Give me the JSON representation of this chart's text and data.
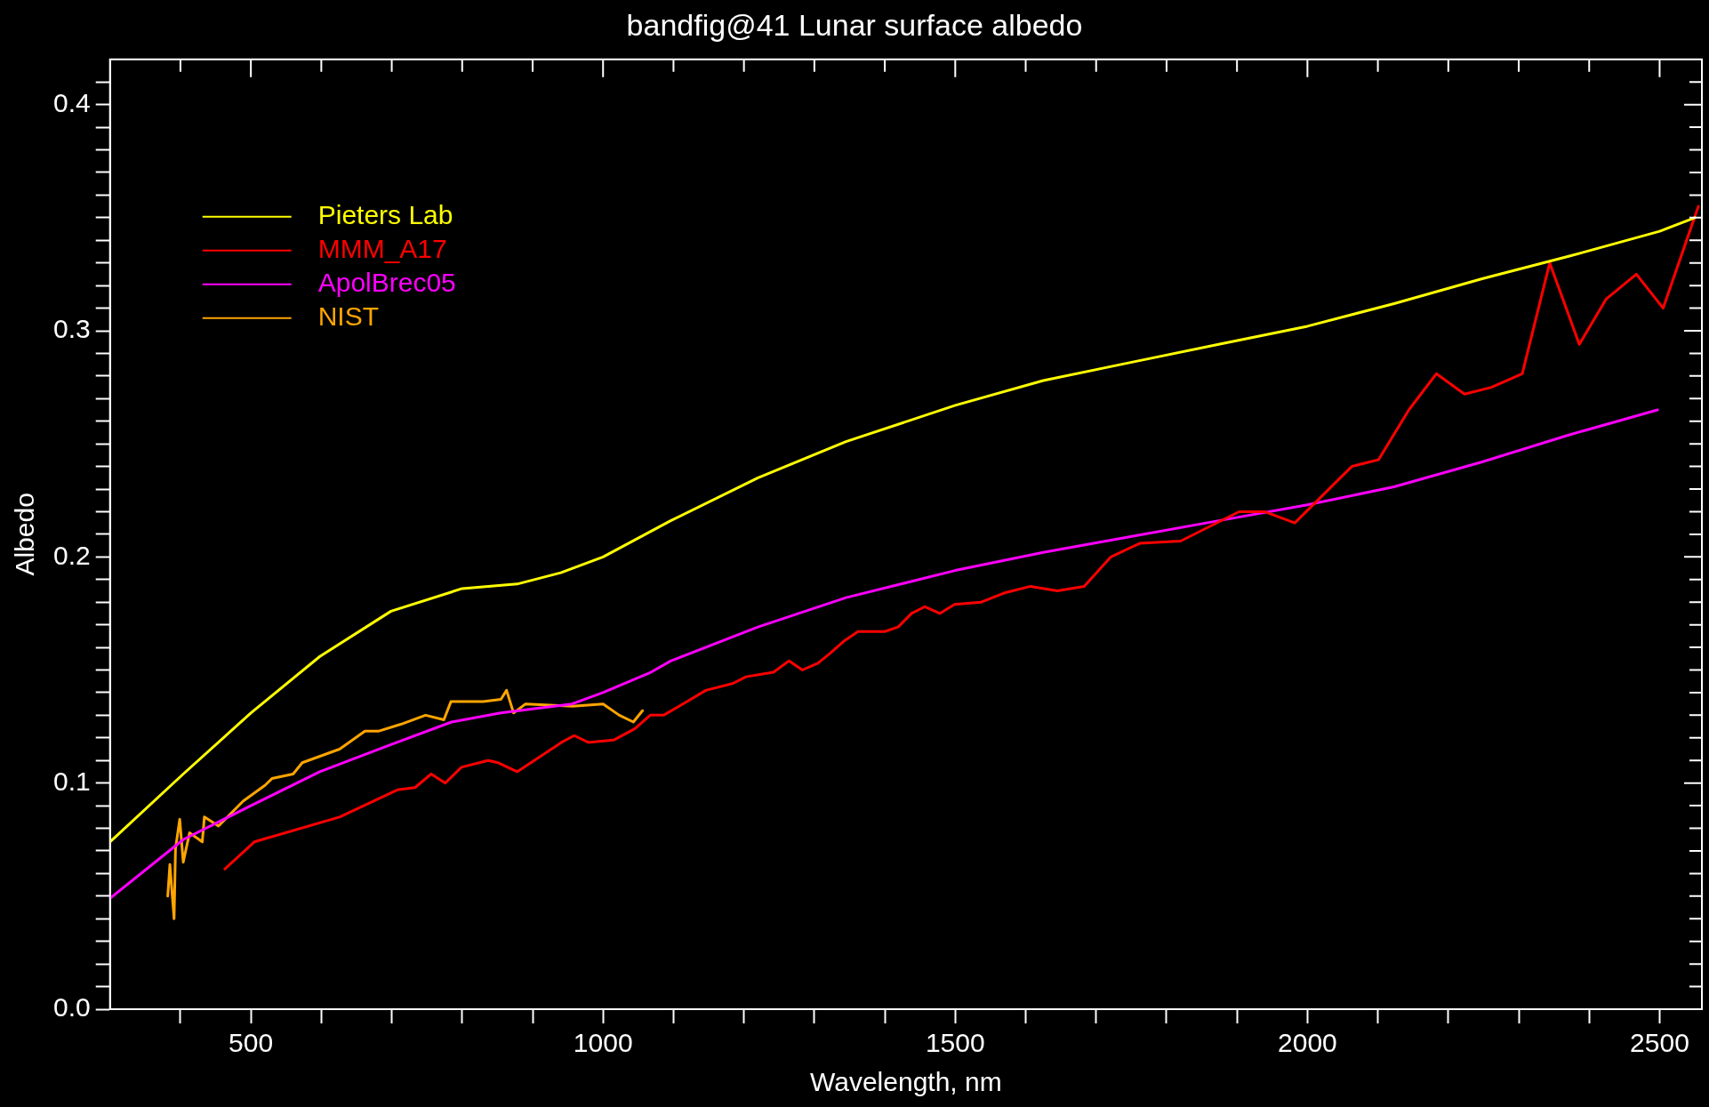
{
  "chart_data": {
    "type": "line",
    "title": "bandfig@41 Lunar surface albedo",
    "xlabel": "Wavelength, nm",
    "ylabel": "Albedo",
    "xlim": [
      300,
      2560
    ],
    "ylim": [
      0,
      0.42
    ],
    "xticks": [
      {
        "value": 400,
        "label": null
      },
      500,
      {
        "value": 600,
        "label": null
      },
      {
        "value": 700,
        "label": null
      },
      {
        "value": 800,
        "label": null
      },
      {
        "value": 900,
        "label": null
      },
      1000,
      {
        "value": 1100,
        "label": null
      },
      {
        "value": 1200,
        "label": null
      },
      {
        "value": 1300,
        "label": null
      },
      {
        "value": 1400,
        "label": null
      },
      1500,
      {
        "value": 1600,
        "label": null
      },
      {
        "value": 1700,
        "label": null
      },
      {
        "value": 1800,
        "label": null
      },
      {
        "value": 1900,
        "label": null
      },
      2000,
      {
        "value": 2100,
        "label": null
      },
      {
        "value": 2200,
        "label": null
      },
      {
        "value": 2300,
        "label": null
      },
      {
        "value": 2400,
        "label": null
      },
      2500
    ],
    "yticks": [
      {
        "value": 0,
        "label": "0.0"
      },
      {
        "value": 0.01,
        "label": null
      },
      {
        "value": 0.02,
        "label": null
      },
      {
        "value": 0.03,
        "label": null
      },
      {
        "value": 0.04,
        "label": null
      },
      {
        "value": 0.05,
        "label": null
      },
      {
        "value": 0.06,
        "label": null
      },
      {
        "value": 0.07,
        "label": null
      },
      {
        "value": 0.08,
        "label": null
      },
      {
        "value": 0.09,
        "label": null
      },
      0.1,
      {
        "value": 0.11,
        "label": null
      },
      {
        "value": 0.12,
        "label": null
      },
      {
        "value": 0.13,
        "label": null
      },
      {
        "value": 0.14,
        "label": null
      },
      {
        "value": 0.15,
        "label": null
      },
      {
        "value": 0.16,
        "label": null
      },
      {
        "value": 0.17,
        "label": null
      },
      {
        "value": 0.18,
        "label": null
      },
      {
        "value": 0.19,
        "label": null
      },
      0.2,
      {
        "value": 0.21,
        "label": null
      },
      {
        "value": 0.22,
        "label": null
      },
      {
        "value": 0.23,
        "label": null
      },
      {
        "value": 0.24,
        "label": null
      },
      {
        "value": 0.25,
        "label": null
      },
      {
        "value": 0.26,
        "label": null
      },
      {
        "value": 0.27,
        "label": null
      },
      {
        "value": 0.28,
        "label": null
      },
      {
        "value": 0.29,
        "label": null
      },
      0.3,
      {
        "value": 0.31,
        "label": null
      },
      {
        "value": 0.32,
        "label": null
      },
      {
        "value": 0.33,
        "label": null
      },
      {
        "value": 0.34,
        "label": null
      },
      {
        "value": 0.35,
        "label": null
      },
      {
        "value": 0.36,
        "label": null
      },
      {
        "value": 0.37,
        "label": null
      },
      {
        "value": 0.38,
        "label": null
      },
      {
        "value": 0.39,
        "label": null
      },
      0.4,
      {
        "value": 0.41,
        "label": null
      }
    ],
    "grid": false,
    "legend": "top left",
    "marker": "none",
    "line_style": "solid",
    "series": [
      {
        "name": "Pieters Lab",
        "color": "#ffff00",
        "x": [
          300,
          404,
          500,
          598,
          699,
          800,
          878,
          940,
          1000,
          1096,
          1220,
          1345,
          1500,
          1625,
          1749,
          1874,
          2000,
          2123,
          2248,
          2372,
          2500,
          2550
        ],
        "values": [
          0.074,
          0.104,
          0.131,
          0.156,
          0.176,
          0.186,
          0.188,
          0.193,
          0.2,
          0.216,
          0.235,
          0.251,
          0.267,
          0.278,
          0.286,
          0.294,
          0.302,
          0.312,
          0.323,
          0.333,
          0.344,
          0.35
        ]
      },
      {
        "name": "MMM_A17",
        "color": "#ff0000",
        "x": [
          463,
          505,
          626,
          708,
          733,
          756,
          776,
          799,
          837,
          851,
          878,
          941,
          959,
          979,
          1015,
          1045,
          1067,
          1086,
          1108,
          1146,
          1184,
          1203,
          1242,
          1264,
          1283,
          1305,
          1321,
          1343,
          1362,
          1400,
          1419,
          1438,
          1457,
          1478,
          1499,
          1537,
          1569,
          1607,
          1645,
          1683,
          1721,
          1762,
          1820,
          1903,
          1939,
          1982,
          2063,
          2101,
          2144,
          2183,
          2223,
          2261,
          2305,
          2344,
          2386,
          2424,
          2467,
          2505,
          2555
        ],
        "values": [
          0.062,
          0.074,
          0.085,
          0.097,
          0.098,
          0.104,
          0.1,
          0.107,
          0.11,
          0.109,
          0.105,
          0.118,
          0.121,
          0.118,
          0.119,
          0.124,
          0.13,
          0.13,
          0.134,
          0.141,
          0.144,
          0.147,
          0.149,
          0.154,
          0.15,
          0.153,
          0.157,
          0.163,
          0.167,
          0.167,
          0.169,
          0.175,
          0.178,
          0.175,
          0.179,
          0.18,
          0.184,
          0.187,
          0.185,
          0.187,
          0.2,
          0.206,
          0.207,
          0.22,
          0.22,
          0.215,
          0.24,
          0.243,
          0.265,
          0.281,
          0.272,
          0.275,
          0.281,
          0.33,
          0.294,
          0.314,
          0.325,
          0.31,
          0.355
        ]
      },
      {
        "name": "ApolBrec05",
        "color": "#ff00ff",
        "x": [
          300,
          404,
          500,
          598,
          699,
          785,
          855,
          956,
          1000,
          1068,
          1096,
          1220,
          1345,
          1500,
          1625,
          1749,
          1874,
          2000,
          2123,
          2248,
          2372,
          2497
        ],
        "values": [
          0.049,
          0.075,
          0.09,
          0.105,
          0.117,
          0.127,
          0.131,
          0.135,
          0.14,
          0.149,
          0.154,
          0.169,
          0.182,
          0.194,
          0.202,
          0.209,
          0.216,
          0.223,
          0.231,
          0.242,
          0.254,
          0.265
        ]
      },
      {
        "name": "NIST",
        "color": "#ffa500",
        "x": [
          382,
          385,
          391,
          393,
          399,
          404,
          413,
          431,
          434,
          454,
          489,
          520,
          530,
          560,
          573,
          626,
          662,
          682,
          713,
          748,
          774,
          784,
          830,
          855,
          863,
          873,
          890,
          957,
          1000,
          1023,
          1043,
          1056
        ],
        "values": [
          0.05,
          0.064,
          0.04,
          0.071,
          0.084,
          0.065,
          0.078,
          0.074,
          0.085,
          0.081,
          0.092,
          0.099,
          0.102,
          0.104,
          0.109,
          0.115,
          0.123,
          0.123,
          0.126,
          0.13,
          0.128,
          0.136,
          0.136,
          0.137,
          0.141,
          0.131,
          0.135,
          0.134,
          0.135,
          0.13,
          0.127,
          0.132
        ]
      }
    ]
  }
}
